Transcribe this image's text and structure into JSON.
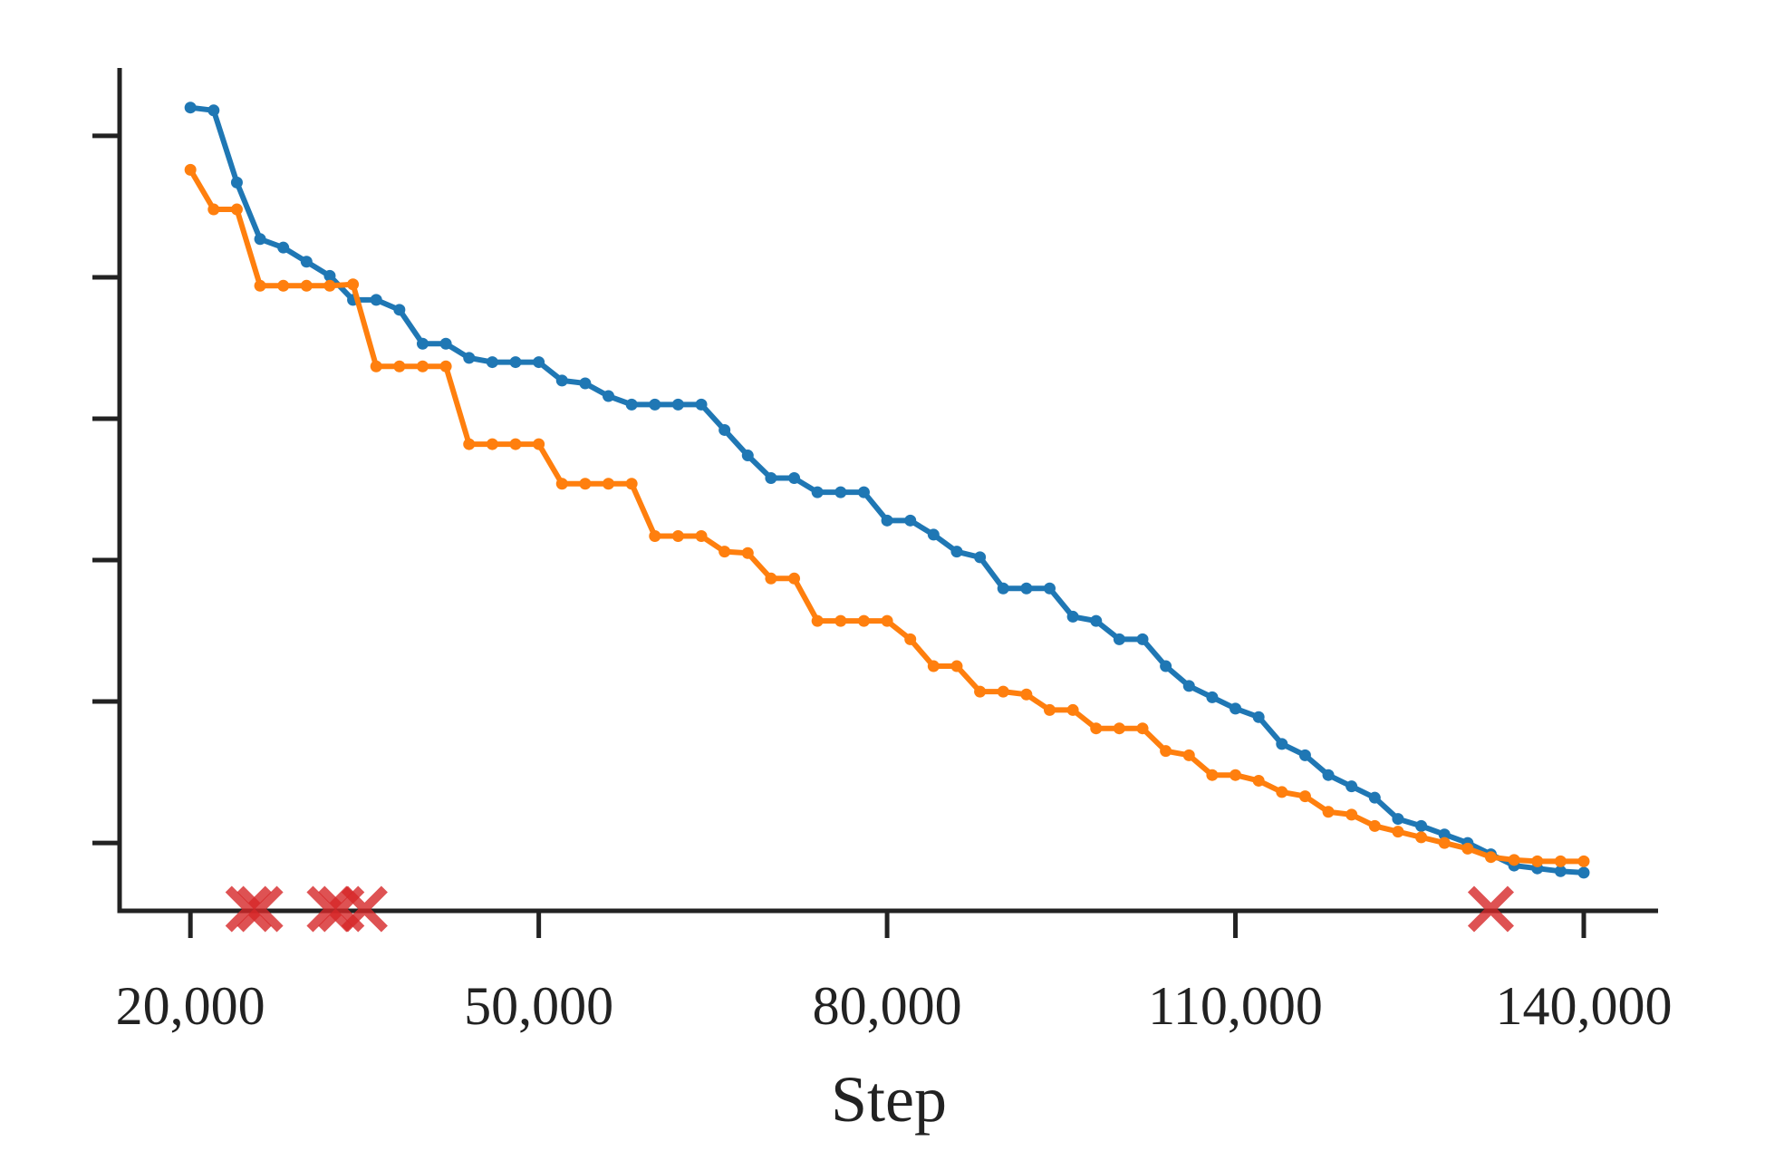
{
  "chart_data": {
    "type": "line",
    "x_label": "Step",
    "x": [
      20000,
      22000,
      24000,
      26000,
      28000,
      30000,
      32000,
      34000,
      36000,
      38000,
      40000,
      42000,
      44000,
      46000,
      48000,
      50000,
      52000,
      54000,
      56000,
      58000,
      60000,
      62000,
      64000,
      66000,
      68000,
      70000,
      72000,
      74000,
      76000,
      78000,
      80000,
      82000,
      84000,
      86000,
      88000,
      90000,
      92000,
      94000,
      96000,
      98000,
      100000,
      102000,
      104000,
      106000,
      108000,
      110000,
      112000,
      114000,
      116000,
      118000,
      120000,
      122000,
      124000,
      126000,
      128000,
      130000,
      132000,
      134000,
      136000,
      138000,
      140000
    ],
    "series": [
      {
        "color": "#1f77b4",
        "values": [
          6.2,
          6.18,
          5.67,
          5.27,
          5.21,
          5.11,
          5.01,
          4.84,
          4.84,
          4.77,
          4.53,
          4.53,
          4.43,
          4.4,
          4.4,
          4.4,
          4.27,
          4.25,
          4.16,
          4.1,
          4.1,
          4.1,
          4.1,
          3.92,
          3.74,
          3.58,
          3.58,
          3.48,
          3.48,
          3.48,
          3.28,
          3.28,
          3.18,
          3.06,
          3.02,
          2.8,
          2.8,
          2.8,
          2.6,
          2.57,
          2.44,
          2.44,
          2.25,
          2.11,
          2.03,
          1.95,
          1.89,
          1.7,
          1.62,
          1.48,
          1.4,
          1.32,
          1.17,
          1.12,
          1.06,
          1.0,
          0.92,
          0.84,
          0.82,
          0.8,
          0.79
        ]
      },
      {
        "color": "#ff7f0e",
        "values": [
          5.76,
          5.48,
          5.48,
          4.94,
          4.94,
          4.94,
          4.94,
          4.95,
          4.37,
          4.37,
          4.37,
          4.37,
          3.82,
          3.82,
          3.82,
          3.82,
          3.54,
          3.54,
          3.54,
          3.54,
          3.17,
          3.17,
          3.17,
          3.06,
          3.05,
          2.87,
          2.87,
          2.57,
          2.57,
          2.57,
          2.57,
          2.44,
          2.25,
          2.25,
          2.07,
          2.07,
          2.05,
          1.94,
          1.94,
          1.81,
          1.81,
          1.81,
          1.65,
          1.62,
          1.48,
          1.48,
          1.44,
          1.36,
          1.33,
          1.22,
          1.2,
          1.12,
          1.08,
          1.04,
          1.0,
          0.96,
          0.9,
          0.88,
          0.87,
          0.87,
          0.87
        ]
      }
    ],
    "markers": {
      "color": "#d62728",
      "x": [
        25000,
        26000,
        32000,
        33000,
        35000,
        132000
      ]
    },
    "xlim": [
      13900,
      146400
    ],
    "xticks": [
      {
        "value": 20000,
        "label": "20,000"
      },
      {
        "value": 50000,
        "label": "50,000"
      },
      {
        "value": 80000,
        "label": "80,000"
      },
      {
        "value": 110000,
        "label": "110,000"
      },
      {
        "value": 140000,
        "label": "140,000"
      }
    ],
    "ylim": [
      0.52,
      6.48
    ],
    "yticks": [
      1,
      2,
      3,
      4,
      5,
      6
    ]
  }
}
